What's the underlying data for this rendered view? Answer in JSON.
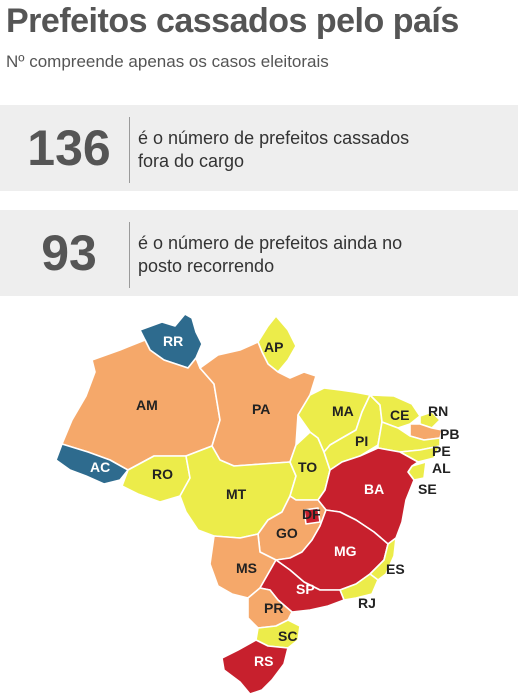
{
  "header": {
    "title": "Prefeitos cassados pelo país",
    "subtitle": "Nº compreende apenas os casos eleitorais"
  },
  "stats": [
    {
      "value": "136",
      "line1": "é o número de prefeitos cassados",
      "line2": "fora do cargo"
    },
    {
      "value": "93",
      "line1": "é o número de prefeitos ainda no",
      "line2": "posto recorrendo"
    }
  ],
  "colors": {
    "blue": "#2e6b8e",
    "orange": "#f5a86a",
    "yellow": "#ecec4a",
    "red": "#c7202d"
  },
  "states": {
    "RR": {
      "label": "RR",
      "color": "blue"
    },
    "AP": {
      "label": "AP",
      "color": "yellow"
    },
    "AM": {
      "label": "AM",
      "color": "orange"
    },
    "PA": {
      "label": "PA",
      "color": "orange"
    },
    "AC": {
      "label": "AC",
      "color": "blue"
    },
    "RO": {
      "label": "RO",
      "color": "yellow"
    },
    "MT": {
      "label": "MT",
      "color": "yellow"
    },
    "MA": {
      "label": "MA",
      "color": "yellow"
    },
    "PI": {
      "label": "PI",
      "color": "yellow"
    },
    "CE": {
      "label": "CE",
      "color": "yellow"
    },
    "RN": {
      "label": "RN",
      "color": "yellow"
    },
    "PB": {
      "label": "PB",
      "color": "orange"
    },
    "PE": {
      "label": "PE",
      "color": "yellow"
    },
    "AL": {
      "label": "AL",
      "color": "yellow"
    },
    "SE": {
      "label": "SE",
      "color": "yellow"
    },
    "TO": {
      "label": "TO",
      "color": "yellow"
    },
    "BA": {
      "label": "BA",
      "color": "red"
    },
    "GO": {
      "label": "GO",
      "color": "orange"
    },
    "DF": {
      "label": "DF",
      "color": "red"
    },
    "MG": {
      "label": "MG",
      "color": "red"
    },
    "ES": {
      "label": "ES",
      "color": "yellow"
    },
    "RJ": {
      "label": "RJ",
      "color": "yellow"
    },
    "MS": {
      "label": "MS",
      "color": "orange"
    },
    "SP": {
      "label": "SP",
      "color": "red"
    },
    "PR": {
      "label": "PR",
      "color": "orange"
    },
    "SC": {
      "label": "SC",
      "color": "yellow"
    },
    "RS": {
      "label": "RS",
      "color": "red"
    }
  }
}
